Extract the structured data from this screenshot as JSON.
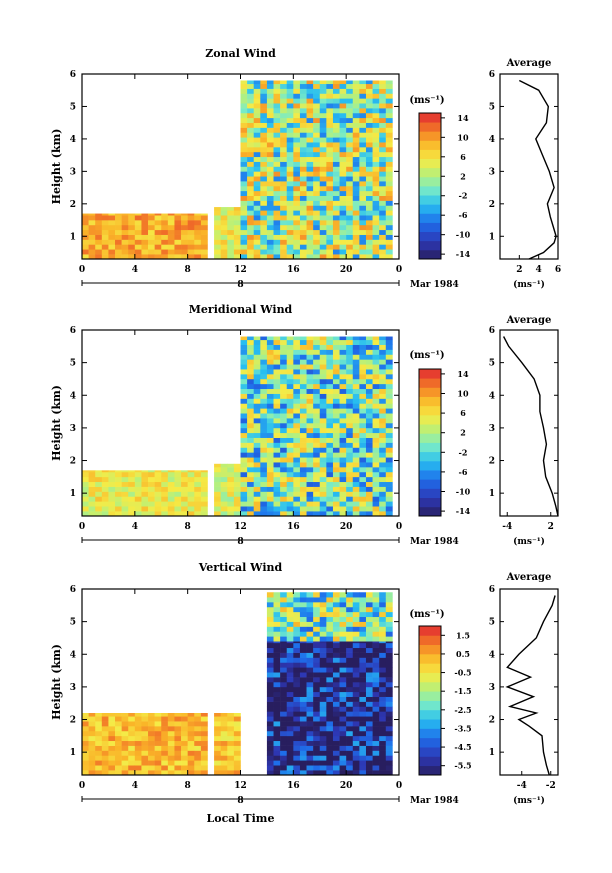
{
  "figure": {
    "x_axis_label": "Local Time",
    "month_label": "Mar 1984",
    "day_label": "8",
    "x_ticks": [
      "0",
      "4",
      "8",
      "12",
      "16",
      "20",
      "0"
    ],
    "height_label": "Height (km)",
    "unit_label": "(ms⁻¹)",
    "average_title": "Average"
  },
  "chart_data": [
    {
      "type": "heatmap",
      "title": "Zonal Wind",
      "xlabel": "Local Time",
      "ylabel": "Height (km)",
      "xlim": [
        0,
        24
      ],
      "ylim": [
        0.3,
        6
      ],
      "y_ticks": [
        1,
        2,
        3,
        4,
        5,
        6
      ],
      "colorbar": {
        "label": "(ms⁻¹)",
        "range": [
          -15,
          15
        ],
        "ticks": [
          14,
          10,
          6,
          2,
          -2,
          -6,
          -10,
          -14
        ]
      },
      "data_gap_hours": [
        9.5,
        10
      ],
      "regimes": [
        {
          "t_start": 0,
          "t_end": 9.5,
          "z_top": 1.7,
          "value": 9
        },
        {
          "t_start": 10,
          "t_end": 12,
          "z_top": 1.9,
          "value": 5
        },
        {
          "t_start": 12,
          "t_end": 23.5,
          "z_top": 5.8,
          "value": 2
        }
      ],
      "profile": {
        "title": "Average",
        "xlabel": "(ms⁻¹)",
        "x_ticks": [
          2,
          4,
          6
        ],
        "xlim": [
          0,
          6
        ],
        "height": [
          0.3,
          0.5,
          0.8,
          1.0,
          1.3,
          1.6,
          2.0,
          2.5,
          3.0,
          3.5,
          4.0,
          4.5,
          5.0,
          5.5,
          5.8
        ],
        "values": [
          3.0,
          4.5,
          5.6,
          5.8,
          5.5,
          5.2,
          4.9,
          5.6,
          5.1,
          4.4,
          3.7,
          4.8,
          5.0,
          4.0,
          2.0
        ]
      }
    },
    {
      "type": "heatmap",
      "title": "Meridional Wind",
      "xlabel": "Local Time",
      "ylabel": "Height (km)",
      "xlim": [
        0,
        24
      ],
      "ylim": [
        0.3,
        6
      ],
      "y_ticks": [
        1,
        2,
        3,
        4,
        5,
        6
      ],
      "colorbar": {
        "label": "(ms⁻¹)",
        "range": [
          -15,
          15
        ],
        "ticks": [
          14,
          10,
          6,
          2,
          -2,
          -6,
          -10,
          -14
        ]
      },
      "data_gap_hours": [
        9.5,
        10
      ],
      "regimes": [
        {
          "t_start": 0,
          "t_end": 9.5,
          "z_top": 1.7,
          "value": 5
        },
        {
          "t_start": 10,
          "t_end": 12,
          "z_top": 1.9,
          "value": 4
        },
        {
          "t_start": 12,
          "t_end": 23.5,
          "z_top": 5.8,
          "value": 0
        }
      ],
      "profile": {
        "title": "Average",
        "xlabel": "(ms⁻¹)",
        "x_ticks": [
          -4,
          2
        ],
        "xlim": [
          -5,
          3
        ],
        "height": [
          0.3,
          0.6,
          1.0,
          1.5,
          2.0,
          2.5,
          3.0,
          3.5,
          4.0,
          4.5,
          5.0,
          5.5,
          5.8
        ],
        "values": [
          3.0,
          2.7,
          2.2,
          1.3,
          1.0,
          1.4,
          1.0,
          0.5,
          0.5,
          -0.3,
          -2.0,
          -3.8,
          -4.5
        ]
      }
    },
    {
      "type": "heatmap",
      "title": "Vertical Wind",
      "xlabel": "Local Time",
      "ylabel": "Height (km)",
      "xlim": [
        0,
        24
      ],
      "ylim": [
        0.3,
        6
      ],
      "y_ticks": [
        1,
        2,
        3,
        4,
        5,
        6
      ],
      "colorbar": {
        "label": "(ms⁻¹)",
        "range": [
          -6,
          2
        ],
        "ticks": [
          1.5,
          0.5,
          -0.5,
          -1.5,
          -2.5,
          -3.5,
          -4.5,
          -5.5
        ]
      },
      "data_gap_hours": [
        9.5,
        10
      ],
      "regimes": [
        {
          "t_start": 0,
          "t_end": 9.5,
          "z_top": 2.2,
          "value": 0.2
        },
        {
          "t_start": 10,
          "t_end": 12,
          "z_top": 2.2,
          "value": 0.1
        },
        {
          "t_start": 14,
          "t_end": 23.5,
          "z_top": 4.4,
          "value": -5.6
        },
        {
          "t_start": 14,
          "t_end": 23.5,
          "z_top": 5.9,
          "value": -1.9
        }
      ],
      "profile": {
        "title": "Average",
        "xlabel": "(ms⁻¹)",
        "x_ticks": [
          -4,
          -2
        ],
        "xlim": [
          -5.5,
          -1.5
        ],
        "height": [
          0.3,
          0.6,
          1.0,
          1.5,
          1.8,
          2.0,
          2.2,
          2.4,
          2.7,
          3.0,
          3.3,
          3.6,
          4.0,
          4.5,
          5.0,
          5.5,
          5.8
        ],
        "values": [
          -2.1,
          -2.3,
          -2.5,
          -2.6,
          -3.5,
          -4.2,
          -3.0,
          -4.8,
          -3.2,
          -5.0,
          -3.4,
          -5.0,
          -4.2,
          -3.0,
          -2.5,
          -1.9,
          -1.7
        ]
      }
    }
  ]
}
